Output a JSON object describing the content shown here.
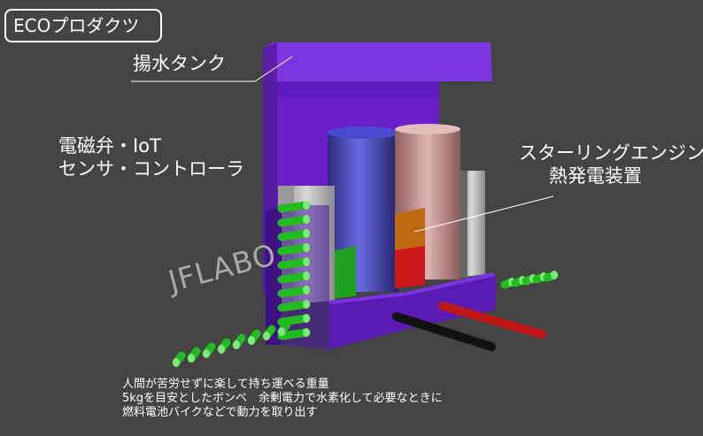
{
  "badge": "ECOプロダクツ",
  "labels": {
    "tank": "揚水タンク",
    "valve_line1": "電磁弁・IoT",
    "valve_line2": "センサ・コントローラ",
    "engine_line1": "スターリングエンジン",
    "engine_line2": "熱発電装置"
  },
  "watermark": "JFLABO",
  "footnote": [
    "人間が苦労せずに楽して持ち運べる重量",
    "5kgを目安としたボンベ　余剰電力で水素化して必要なときに",
    "燃料電池バイクなどで動力を取り出す"
  ],
  "colors": {
    "background": "#444444",
    "frame_purple": "#6a22c8",
    "blue_cylinder": "#3a3aa8",
    "pink_cylinder": "#c99a9a",
    "orange_block": "#c06810",
    "red_block": "#cc1818",
    "green_rods": "#22bb22",
    "red_cable": "#c01818",
    "black_cable": "#111111"
  }
}
